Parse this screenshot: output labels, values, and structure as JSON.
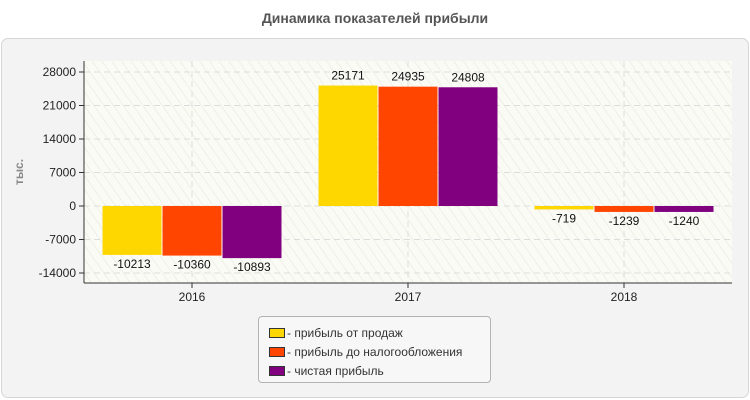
{
  "chart_data": {
    "type": "bar",
    "title": "Динамика показателей прибыли",
    "ylabel": "тыс.",
    "xlabel": "",
    "categories": [
      "2016",
      "2017",
      "2018"
    ],
    "ylim": [
      -14000,
      28000
    ],
    "yticks": [
      28000,
      21000,
      14000,
      7000,
      0,
      -7000,
      -14000
    ],
    "grid": true,
    "legend_position": "bottom",
    "series": [
      {
        "name": "- прибыль от продаж",
        "color": "#ffd700",
        "values": [
          -10213,
          25171,
          -719
        ]
      },
      {
        "name": "- прибыль до налогообложения",
        "color": "#ff4500",
        "values": [
          -10360,
          24935,
          -1239
        ]
      },
      {
        "name": "- чистая прибыль",
        "color": "#800080",
        "values": [
          -10893,
          24808,
          -1240
        ]
      }
    ]
  }
}
